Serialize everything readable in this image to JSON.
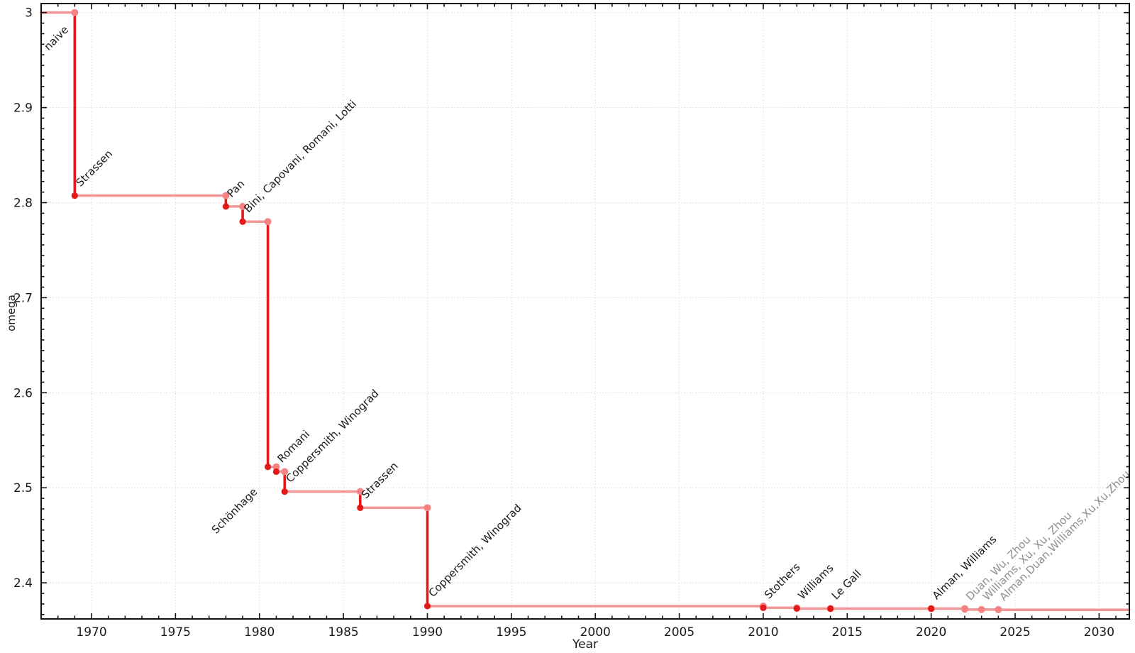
{
  "figure": {
    "background": "#ffffff",
    "description": "Step chart of upper bounds on the matrix multiplication exponent omega over time"
  },
  "chart_data": {
    "type": "line",
    "subtype": "step",
    "title": "",
    "xlabel": "Year",
    "ylabel": "omega",
    "grid": true,
    "legend": false,
    "x_axis": {
      "min": 1967.0,
      "max": 2031.8,
      "major_tick_step": 5,
      "minor_tick_step": 1,
      "ticks": [
        {
          "value": 1970,
          "label": "1970"
        },
        {
          "value": 1975,
          "label": "1975"
        },
        {
          "value": 1980,
          "label": "1980"
        },
        {
          "value": 1985,
          "label": "1985"
        },
        {
          "value": 1990,
          "label": "1990"
        },
        {
          "value": 1995,
          "label": "1995"
        },
        {
          "value": 2000,
          "label": "2000"
        },
        {
          "value": 2005,
          "label": "2005"
        },
        {
          "value": 2010,
          "label": "2010"
        },
        {
          "value": 2015,
          "label": "2015"
        },
        {
          "value": 2020,
          "label": "2020"
        },
        {
          "value": 2025,
          "label": "2025"
        },
        {
          "value": 2030,
          "label": "2030"
        }
      ]
    },
    "y_axis": {
      "min": 2.362,
      "max": 3.0095,
      "major_tick_step": 0.1,
      "minor_subdivisions": 9,
      "ticks": [
        {
          "value": 3.0,
          "label": "3"
        },
        {
          "value": 2.9,
          "label": "2.9"
        },
        {
          "value": 2.8,
          "label": "2.8"
        },
        {
          "value": 2.7,
          "label": "2.7"
        },
        {
          "value": 2.6,
          "label": "2.6"
        },
        {
          "value": 2.5,
          "label": "2.5"
        },
        {
          "value": 2.4,
          "label": "2.4"
        }
      ]
    },
    "colors": {
      "line_established": "#e31a1c",
      "line_plateau": "#f19898",
      "marker_established": "#e31a1c",
      "marker_provisional": "#f48484",
      "label_default": "#1a1a1a",
      "label_provisional": "#8f8f8f",
      "grid": "#dadada",
      "axis": "#111111"
    },
    "events": [
      {
        "label": "naive",
        "year": 1967,
        "omega": 3.0,
        "marker": "none",
        "label_style": "black",
        "label_placement": "end-of-plateau"
      },
      {
        "label": "Strassen",
        "year": 1969,
        "omega": 2.8074,
        "marker": "dark",
        "label_style": "black",
        "label_placement": "above-right"
      },
      {
        "label": "Pan",
        "year": 1978,
        "omega": 2.796,
        "marker": "dark",
        "label_style": "black",
        "label_placement": "above-right"
      },
      {
        "label": "Bini, Capovani, Romani, Lotti",
        "year": 1979,
        "omega": 2.78,
        "marker": "dark",
        "label_style": "black",
        "label_placement": "above-right"
      },
      {
        "label": "Schönhage",
        "year": 1980.5,
        "omega": 2.522,
        "marker": "dark",
        "label_style": "black",
        "label_placement": "below-left"
      },
      {
        "label": "Romani",
        "year": 1981,
        "omega": 2.517,
        "marker": "dark",
        "label_style": "black",
        "label_placement": "above-right"
      },
      {
        "label": "Coppersmith, Winograd",
        "year": 1981.5,
        "omega": 2.496,
        "marker": "dark",
        "label_style": "black",
        "label_placement": "above-right"
      },
      {
        "label": "Strassen",
        "year": 1986,
        "omega": 2.479,
        "marker": "dark",
        "label_style": "black",
        "label_placement": "above-right"
      },
      {
        "label": "Coppersmith, Winograd",
        "year": 1990,
        "omega": 2.3755,
        "marker": "dark",
        "label_style": "black",
        "label_placement": "above-right"
      },
      {
        "label": "Stothers",
        "year": 2010,
        "omega": 2.3737,
        "marker": "dark",
        "label_style": "black",
        "label_placement": "above-right"
      },
      {
        "label": "Williams",
        "year": 2012,
        "omega": 2.3729,
        "marker": "dark",
        "label_style": "black",
        "label_placement": "above-right"
      },
      {
        "label": "Le Gall",
        "year": 2014,
        "omega": 2.3728639,
        "marker": "dark",
        "label_style": "black",
        "label_placement": "above-right"
      },
      {
        "label": "Alman, Williams",
        "year": 2020,
        "omega": 2.3728596,
        "marker": "dark",
        "label_style": "black",
        "label_placement": "above-right"
      },
      {
        "label": "Duan, Wu, Zhou",
        "year": 2022,
        "omega": 2.37188,
        "marker": "light",
        "label_style": "gray",
        "label_placement": "above-right"
      },
      {
        "label": "Williams, Xu, Xu, Zhou",
        "year": 2023,
        "omega": 2.371866,
        "marker": "light",
        "label_style": "gray",
        "label_placement": "above-right"
      },
      {
        "label": "Alman,Duan,Williams,Xu,Xu,Zhou",
        "year": 2024,
        "omega": 2.371552,
        "marker": "light",
        "label_style": "gray",
        "label_placement": "above-right"
      }
    ]
  }
}
